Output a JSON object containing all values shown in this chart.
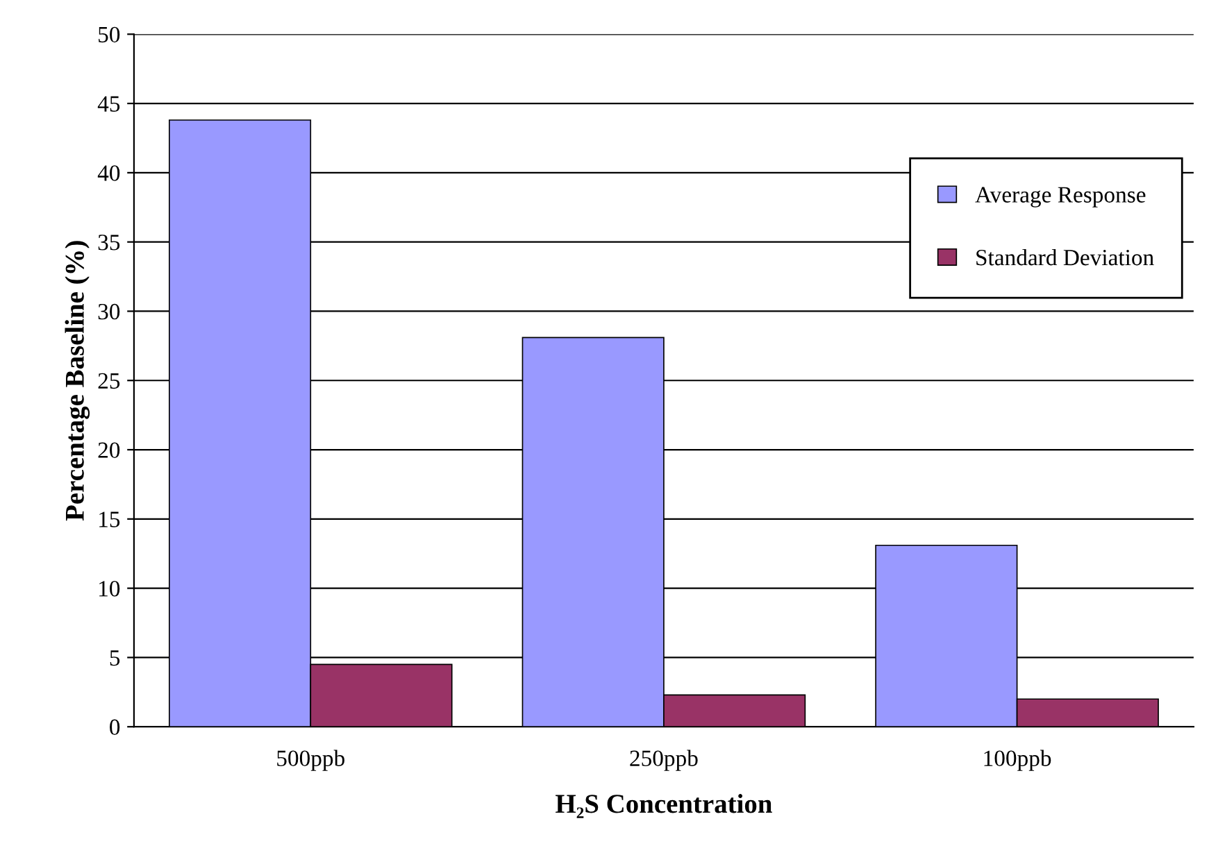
{
  "chart_data": {
    "type": "bar",
    "xlabel": "H₂S Concentration",
    "ylabel": "Percentage Baseline (%)",
    "categories": [
      "500ppb",
      "250ppb",
      "100ppb"
    ],
    "series": [
      {
        "name": "Average Response",
        "color": "#9999ff",
        "values": [
          43.8,
          28.1,
          13.1
        ]
      },
      {
        "name": "Standard Deviation",
        "color": "#993366",
        "values": [
          4.5,
          2.3,
          2.0
        ]
      }
    ],
    "ylim": [
      0,
      50
    ],
    "yticks": [
      0,
      5,
      10,
      15,
      20,
      25,
      30,
      35,
      40,
      45,
      50
    ],
    "grid": "y",
    "legend": "right"
  }
}
